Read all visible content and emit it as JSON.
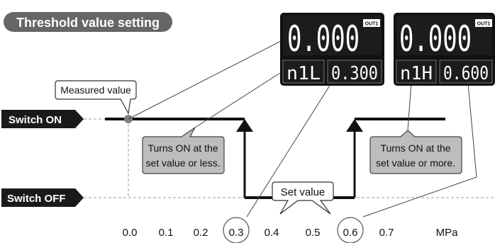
{
  "title": "Threshold value setting",
  "switch_on_label": "Switch ON",
  "switch_off_label": "Switch OFF",
  "measured_value_label": "Measured value",
  "set_value_label": "Set value",
  "note_left_line1": "Turns ON at the",
  "note_left_line2": "set value or less.",
  "note_right_line1": "Turns ON at the",
  "note_right_line2": "set value or more.",
  "axis_ticks": [
    "0.0",
    "0.1",
    "0.2",
    "0.3",
    "0.4",
    "0.5",
    "0.6",
    "0.7"
  ],
  "axis_unit": "MPa",
  "highlighted_ticks": [
    "0.3",
    "0.6"
  ],
  "display_left": {
    "main_value": "0.000",
    "out_badge": "OUT1",
    "mode": "n1L",
    "set_value": "0.300"
  },
  "display_right": {
    "main_value": "0.000",
    "out_badge": "OUT1",
    "mode": "n1H",
    "set_value": "0.600"
  },
  "colors": {
    "title_bg": "#666666",
    "label_bg": "#1a1a1a",
    "note_bg": "#bdbdbd",
    "display_bg": "#111111",
    "display_fg": "#ffffff",
    "measured_dot": "#808080"
  }
}
